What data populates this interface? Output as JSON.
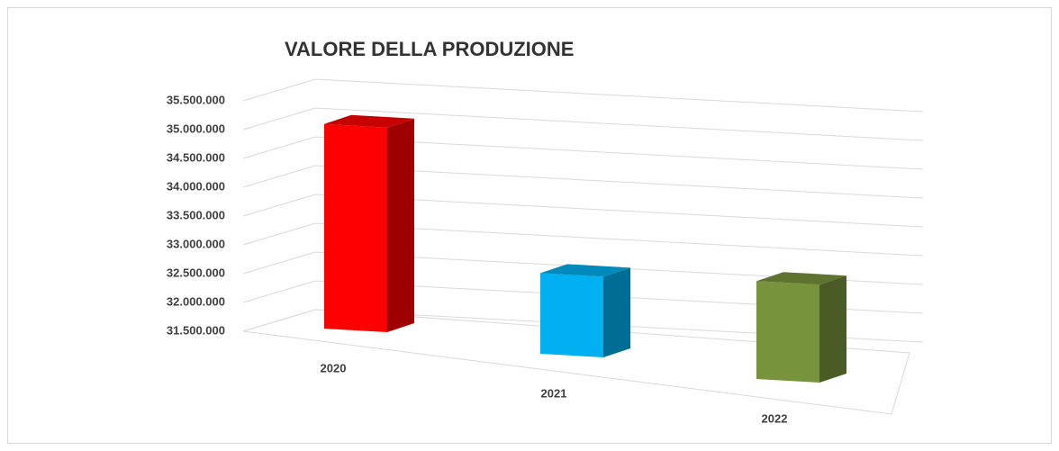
{
  "chart_data": {
    "type": "bar3d",
    "title": "VALORE DELLA PRODUZIONE",
    "categories": [
      "2020",
      "2021",
      "2022"
    ],
    "values": [
      35050000,
      32900000,
      33200000
    ],
    "colors": [
      "#ff0000",
      "#00b0f0",
      "#77933c"
    ],
    "ylim": [
      31500000,
      35500000
    ],
    "yticks": [
      {
        "value": 31500000,
        "label": "31.500.000"
      },
      {
        "value": 32000000,
        "label": "32.000.000"
      },
      {
        "value": 32500000,
        "label": "32.500.000"
      },
      {
        "value": 33000000,
        "label": "33.000.000"
      },
      {
        "value": 33500000,
        "label": "33.500.000"
      },
      {
        "value": 34000000,
        "label": "34.000.000"
      },
      {
        "value": 34500000,
        "label": "34.500.000"
      },
      {
        "value": 35000000,
        "label": "35.000.000"
      },
      {
        "value": 35500000,
        "label": "35.500.000"
      }
    ],
    "grid": true
  }
}
